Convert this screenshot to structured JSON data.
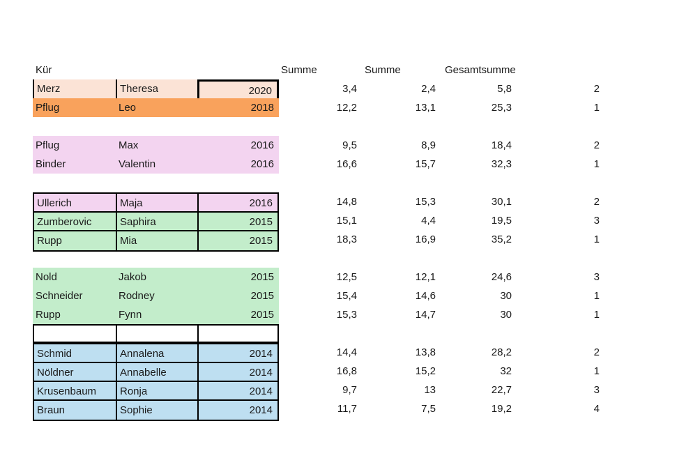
{
  "header": {
    "kuer": "Kür",
    "summe1": "Summe",
    "summe2": "Summe",
    "gesamtsumme": "Gesamtsumme"
  },
  "palette": {
    "peach": "#FBE3D6",
    "orange": "#F9A25C",
    "pink": "#F3D4F0",
    "green": "#C3EDCB",
    "blue": "#BEDFF1",
    "border": "#000000"
  },
  "rows": [
    {
      "last": "Merz",
      "first": "Theresa",
      "year": "2020",
      "s1": "3,4",
      "s2": "2,4",
      "total": "5,8",
      "rank": "2"
    },
    {
      "last": "Pflug",
      "first": "Leo",
      "year": "2018",
      "s1": "12,2",
      "s2": "13,1",
      "total": "25,3",
      "rank": "1"
    },
    {
      "last": "Pflug",
      "first": "Max",
      "year": "2016",
      "s1": "9,5",
      "s2": "8,9",
      "total": "18,4",
      "rank": "2"
    },
    {
      "last": "Binder",
      "first": "Valentin",
      "year": "2016",
      "s1": "16,6",
      "s2": "15,7",
      "total": "32,3",
      "rank": "1"
    },
    {
      "last": "Ullerich",
      "first": "Maja",
      "year": "2016",
      "s1": "14,8",
      "s2": "15,3",
      "total": "30,1",
      "rank": "2"
    },
    {
      "last": "Zumberovic",
      "first": "Saphira",
      "year": "2015",
      "s1": "15,1",
      "s2": "4,4",
      "total": "19,5",
      "rank": "3"
    },
    {
      "last": "Rupp",
      "first": "Mia",
      "year": "2015",
      "s1": "18,3",
      "s2": "16,9",
      "total": "35,2",
      "rank": "1"
    },
    {
      "last": "Nold",
      "first": "Jakob",
      "year": "2015",
      "s1": "12,5",
      "s2": "12,1",
      "total": "24,6",
      "rank": "3"
    },
    {
      "last": "Schneider",
      "first": "Rodney",
      "year": "2015",
      "s1": "15,4",
      "s2": "14,6",
      "total": "30",
      "rank": "1"
    },
    {
      "last": "Rupp",
      "first": "Fynn",
      "year": "2015",
      "s1": "15,3",
      "s2": "14,7",
      "total": "30",
      "rank": "1"
    },
    {
      "last": "Schmid",
      "first": "Annalena",
      "year": "2014",
      "s1": "14,4",
      "s2": "13,8",
      "total": "28,2",
      "rank": "2"
    },
    {
      "last": "Nöldner",
      "first": "Annabelle",
      "year": "2014",
      "s1": "16,8",
      "s2": "15,2",
      "total": "32",
      "rank": "1"
    },
    {
      "last": "Krusenbaum",
      "first": "Ronja",
      "year": "2014",
      "s1": "9,7",
      "s2": "13",
      "total": "22,7",
      "rank": "3"
    },
    {
      "last": "Braun",
      "first": "Sophie",
      "year": "2014",
      "s1": "11,7",
      "s2": "7,5",
      "total": "19,2",
      "rank": "4"
    }
  ]
}
